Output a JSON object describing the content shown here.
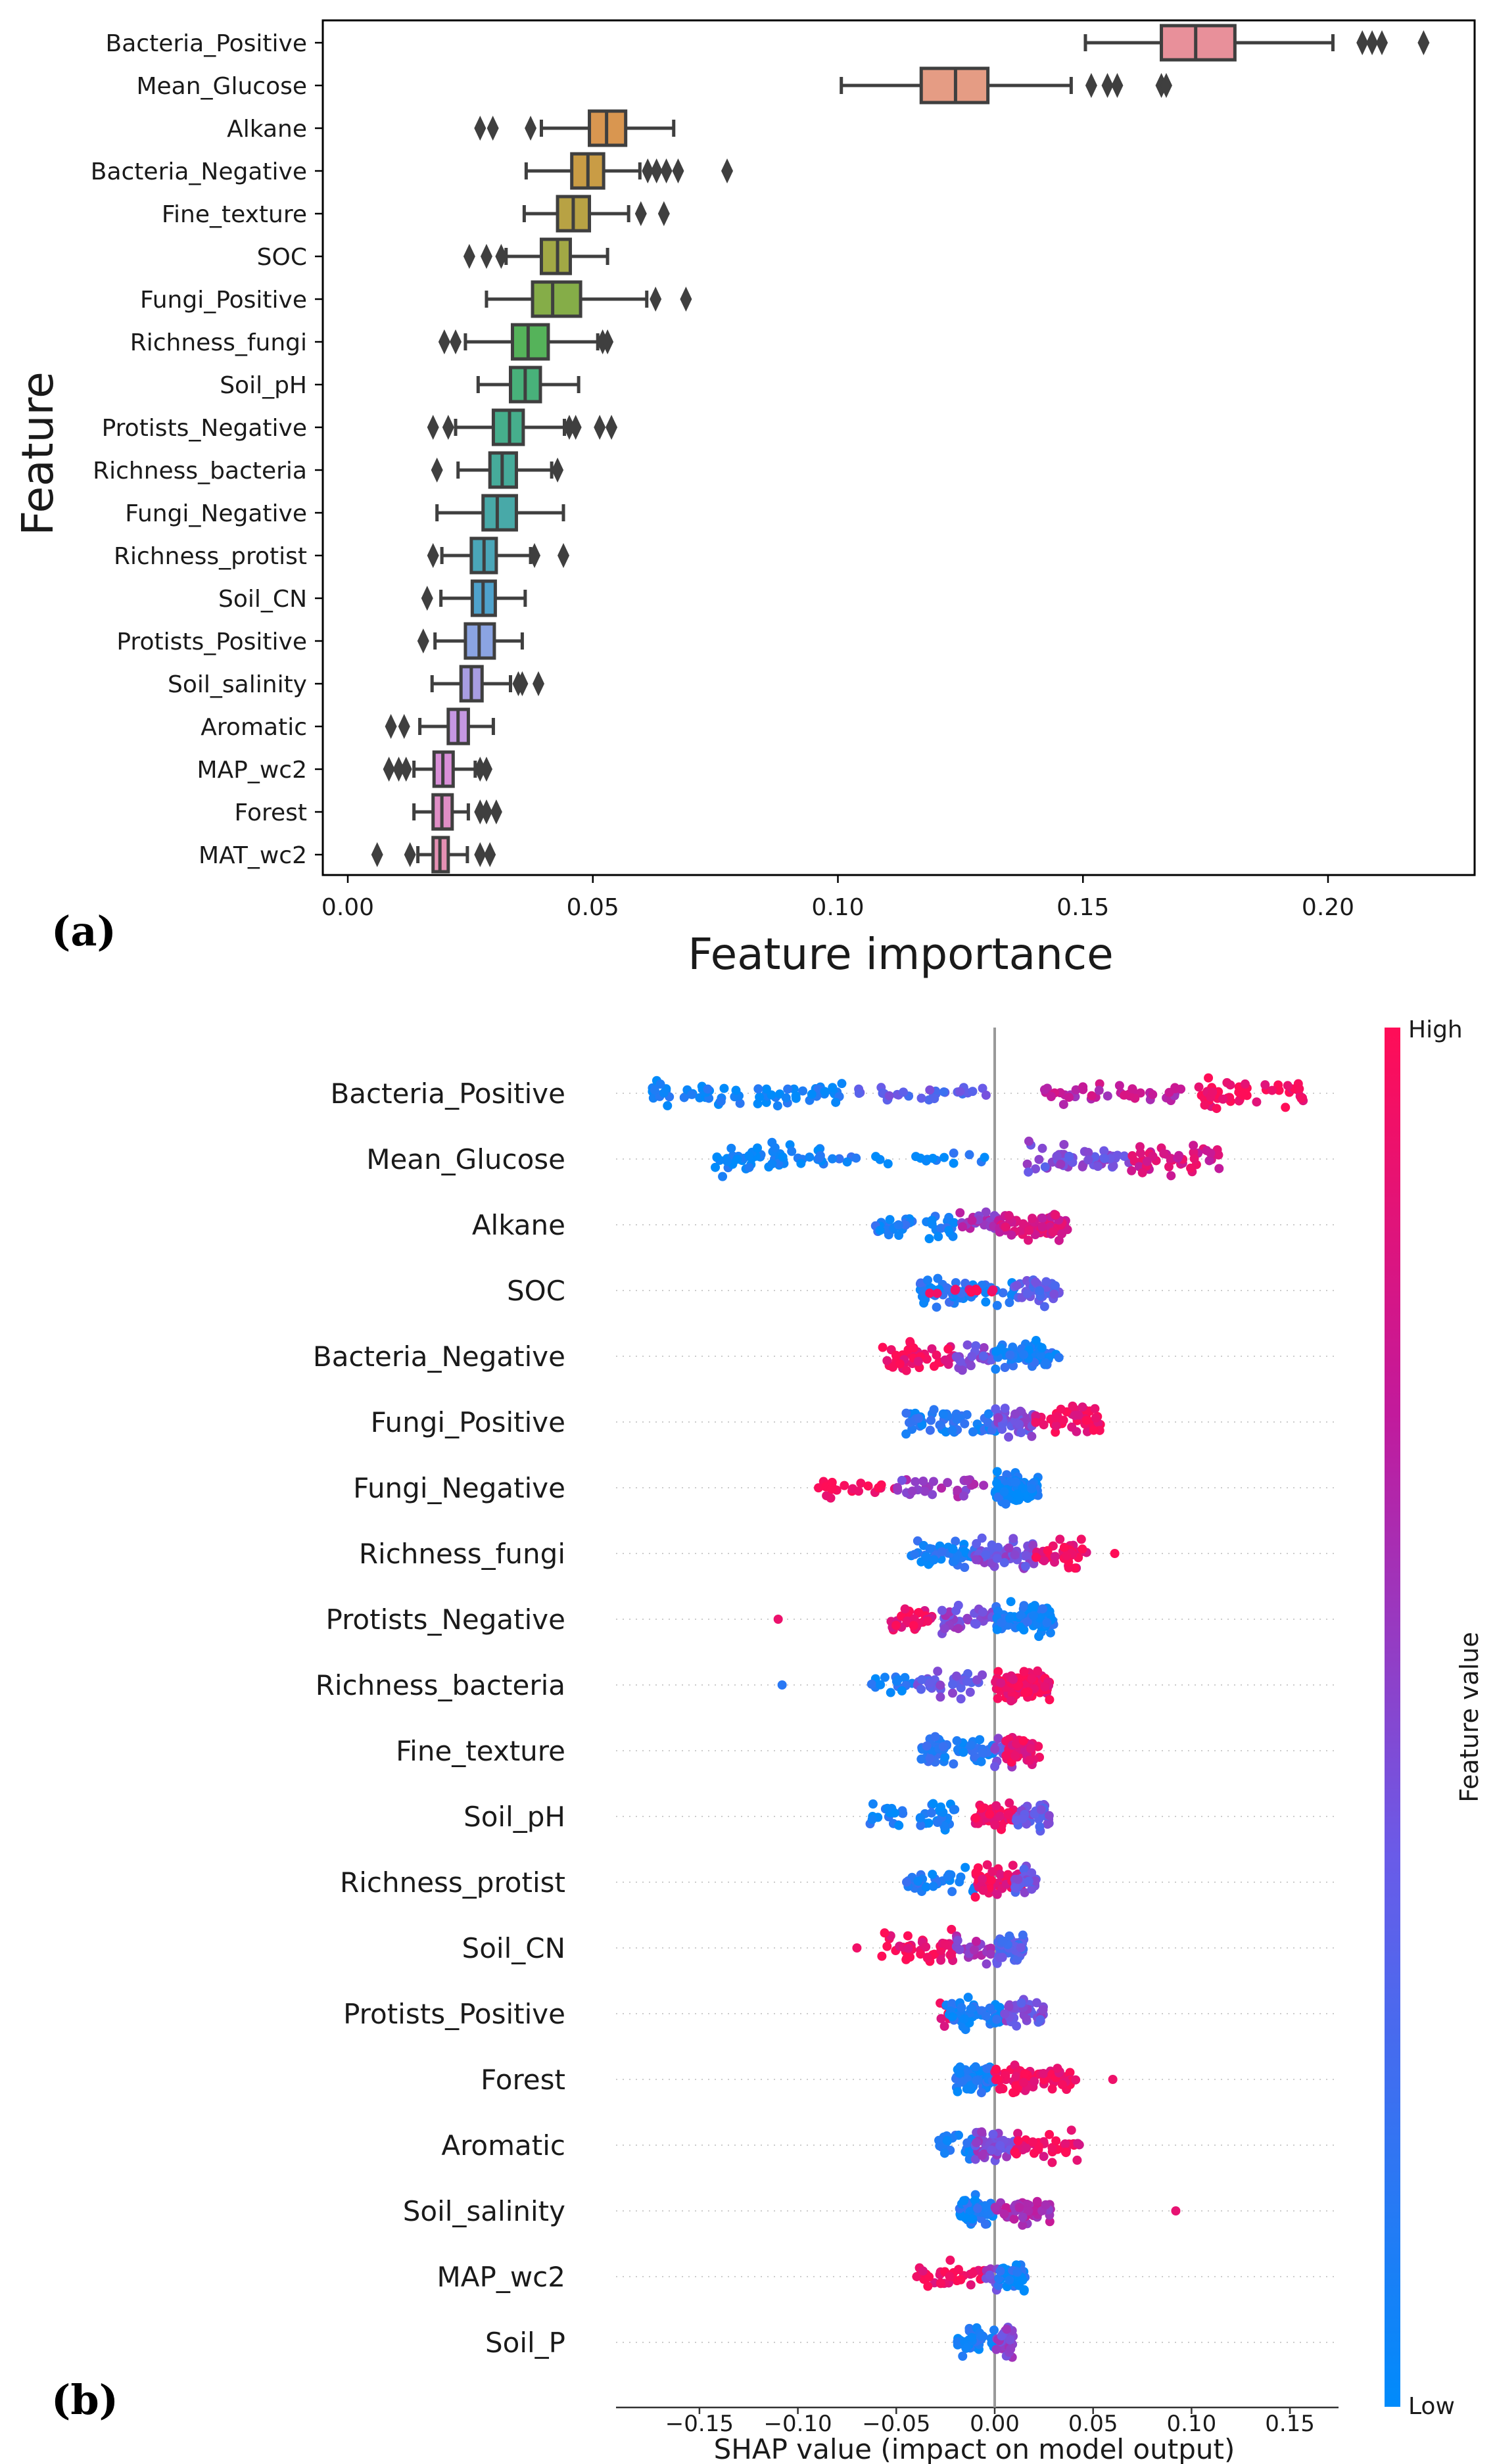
{
  "chart_data": [
    {
      "type": "box",
      "panel_label": "(a)",
      "xlabel": "Feature importance",
      "ylabel": "Feature",
      "xlim": [
        -0.0075,
        0.232
      ],
      "xticks": [
        0,
        0.05,
        0.1,
        0.15,
        0.2
      ],
      "xtick_labels": [
        "0.00",
        "0.05",
        "0.10",
        "0.15",
        "0.20"
      ],
      "grid": false,
      "series": [
        {
          "name": "Bacteria_Positive",
          "color": "#e8909a",
          "whislo": 0.1505,
          "q1": 0.166,
          "med": 0.173,
          "q3": 0.181,
          "whishi": 0.201,
          "fliers": [
            0.207,
            0.209,
            0.211,
            0.2195
          ]
        },
        {
          "name": "Mean_Glucose",
          "color": "#e59c84",
          "whislo": 0.1007,
          "q1": 0.117,
          "med": 0.124,
          "q3": 0.1306,
          "whishi": 0.1476,
          "fliers": [
            0.1517,
            0.155,
            0.157,
            0.166,
            0.167
          ]
        },
        {
          "name": "Alkane",
          "color": "#d99650",
          "whislo": 0.0395,
          "q1": 0.0493,
          "med": 0.0528,
          "q3": 0.0567,
          "whishi": 0.0665,
          "fliers": [
            0.027,
            0.0296,
            0.0373
          ]
        },
        {
          "name": "Bacteria_Negative",
          "color": "#c99c45",
          "whislo": 0.0364,
          "q1": 0.0457,
          "med": 0.049,
          "q3": 0.0522,
          "whishi": 0.0596,
          "fliers": [
            0.0612,
            0.063,
            0.065,
            0.0674,
            0.0774
          ]
        },
        {
          "name": "Fine_texture",
          "color": "#b8a244",
          "whislo": 0.036,
          "q1": 0.0428,
          "med": 0.046,
          "q3": 0.0493,
          "whishi": 0.0573,
          "fliers": [
            0.0598,
            0.0645
          ]
        },
        {
          "name": "SOC",
          "color": "#a2a845",
          "whislo": 0.0323,
          "q1": 0.0395,
          "med": 0.0428,
          "q3": 0.0454,
          "whishi": 0.053,
          "fliers": [
            0.0248,
            0.0283,
            0.0313
          ]
        },
        {
          "name": "Fungi_Positive",
          "color": "#85ad48",
          "whislo": 0.0283,
          "q1": 0.0377,
          "med": 0.0418,
          "q3": 0.0475,
          "whishi": 0.061,
          "fliers": [
            0.0628,
            0.069
          ]
        },
        {
          "name": "Richness_fungi",
          "color": "#55b35a",
          "whislo": 0.024,
          "q1": 0.0336,
          "med": 0.0368,
          "q3": 0.0409,
          "whishi": 0.051,
          "fliers": [
            0.0197,
            0.022,
            0.052,
            0.053
          ]
        },
        {
          "name": "Soil_pH",
          "color": "#48b17a",
          "whislo": 0.0266,
          "q1": 0.0332,
          "med": 0.0362,
          "q3": 0.0393,
          "whishi": 0.0471,
          "fliers": []
        },
        {
          "name": "Protists_Negative",
          "color": "#46ae8c",
          "whislo": 0.022,
          "q1": 0.0297,
          "med": 0.033,
          "q3": 0.0358,
          "whishi": 0.0442,
          "fliers": [
            0.0174,
            0.0205,
            0.0452,
            0.0465,
            0.0514,
            0.0538
          ]
        },
        {
          "name": "Richness_bacteria",
          "color": "#46ab9a",
          "whislo": 0.0225,
          "q1": 0.029,
          "med": 0.0315,
          "q3": 0.0344,
          "whishi": 0.0416,
          "fliers": [
            0.0182,
            0.0428
          ]
        },
        {
          "name": "Fungi_Negative",
          "color": "#48a9a8",
          "whislo": 0.0182,
          "q1": 0.0276,
          "med": 0.0305,
          "q3": 0.0344,
          "whishi": 0.044,
          "fliers": []
        },
        {
          "name": "Richness_protist",
          "color": "#4aa6b8",
          "whislo": 0.0192,
          "q1": 0.0252,
          "med": 0.0278,
          "q3": 0.0303,
          "whishi": 0.0373,
          "fliers": [
            0.0174,
            0.0381,
            0.044
          ]
        },
        {
          "name": "Soil_CN",
          "color": "#4fa2cc",
          "whislo": 0.019,
          "q1": 0.0254,
          "med": 0.0276,
          "q3": 0.0301,
          "whishi": 0.0362,
          "fliers": [
            0.0162
          ]
        },
        {
          "name": "Protists_Positive",
          "color": "#8ba4e2",
          "whislo": 0.0178,
          "q1": 0.024,
          "med": 0.0268,
          "q3": 0.0299,
          "whishi": 0.0356,
          "fliers": [
            0.0154
          ]
        },
        {
          "name": "Soil_salinity",
          "color": "#a89de2",
          "whislo": 0.0172,
          "q1": 0.0231,
          "med": 0.0252,
          "q3": 0.0274,
          "whishi": 0.0332,
          "fliers": [
            0.0348,
            0.0356,
            0.0389
          ]
        },
        {
          "name": "Aromatic",
          "color": "#c597e2",
          "whislo": 0.0147,
          "q1": 0.0205,
          "med": 0.0225,
          "q3": 0.0246,
          "whishi": 0.0297,
          "fliers": [
            0.0088,
            0.0115
          ]
        },
        {
          "name": "MAP_wc2",
          "color": "#d98fd8",
          "whislo": 0.0135,
          "q1": 0.0176,
          "med": 0.0194,
          "q3": 0.0215,
          "whishi": 0.026,
          "fliers": [
            0.0084,
            0.0104,
            0.0119,
            0.027,
            0.0283
          ]
        },
        {
          "name": "Forest",
          "color": "#e08ec6",
          "whislo": 0.0135,
          "q1": 0.0174,
          "med": 0.0192,
          "q3": 0.0213,
          "whishi": 0.0246,
          "fliers": [
            0.027,
            0.0283,
            0.0303
          ]
        },
        {
          "name": "MAT_wc2",
          "color": "#e590b3",
          "whislo": 0.0143,
          "q1": 0.0174,
          "med": 0.0188,
          "q3": 0.0205,
          "whishi": 0.0244,
          "fliers": [
            0.006,
            0.0127,
            0.027,
            0.029
          ]
        }
      ]
    },
    {
      "type": "scatter",
      "subtype": "beeswarm",
      "panel_label": "(b)",
      "xlabel": "SHAP value (impact on model output)",
      "xlim": [
        -0.19,
        0.177
      ],
      "xticks": [
        -0.15,
        -0.1,
        -0.05,
        0,
        0.05,
        0.1,
        0.15
      ],
      "xtick_labels": [
        "−0.15",
        "−0.10",
        "−0.05",
        "0.00",
        "0.05",
        "0.10",
        "0.15"
      ],
      "colorbar": {
        "label": "Feature value",
        "high": "High",
        "low": "Low",
        "colors": [
          "#008bfb",
          "#6a5be8",
          "#c21a9c",
          "#ff0d57"
        ]
      },
      "series": [
        {
          "name": "Bacteria_Positive",
          "groups": [
            [
              -0.174,
              -0.077,
              70,
              0.05
            ],
            [
              -0.077,
              -0.004,
              30,
              0.35
            ],
            [
              0.025,
              0.098,
              45,
              0.7
            ],
            [
              0.103,
              0.157,
              55,
              0.95
            ]
          ]
        },
        {
          "name": "Mean_Glucose",
          "groups": [
            [
              -0.143,
              -0.085,
              55,
              0.03
            ],
            [
              -0.085,
              -0.004,
              20,
              0.1
            ],
            [
              0.016,
              0.069,
              55,
              0.45
            ],
            [
              0.069,
              0.115,
              45,
              0.82
            ]
          ]
        },
        {
          "name": "Alkane",
          "groups": [
            [
              -0.062,
              -0.018,
              40,
              0.1
            ],
            [
              -0.018,
              0.002,
              25,
              0.6
            ],
            [
              0.002,
              0.037,
              70,
              0.8
            ]
          ]
        },
        {
          "name": "SOC",
          "groups": [
            [
              -0.038,
              0.01,
              60,
              0.12
            ],
            [
              -0.036,
              0.0,
              10,
              0.95
            ],
            [
              0.01,
              0.033,
              40,
              0.35
            ]
          ]
        },
        {
          "name": "Bacteria_Negative",
          "groups": [
            [
              -0.06,
              -0.02,
              40,
              0.95
            ],
            [
              -0.02,
              0.0,
              25,
              0.45
            ],
            [
              0.0,
              0.033,
              70,
              0.1
            ]
          ]
        },
        {
          "name": "Fungi_Positive",
          "groups": [
            [
              -0.046,
              0.005,
              60,
              0.12
            ],
            [
              0.0,
              0.02,
              40,
              0.45
            ],
            [
              0.02,
              0.054,
              45,
              0.92
            ]
          ]
        },
        {
          "name": "Fungi_Negative",
          "groups": [
            [
              -0.09,
              -0.05,
              20,
              0.95
            ],
            [
              -0.05,
              -0.005,
              30,
              0.55
            ],
            [
              0.0,
              0.022,
              110,
              0.05
            ]
          ]
        },
        {
          "name": "Richness_fungi",
          "groups": [
            [
              -0.044,
              -0.01,
              50,
              0.12
            ],
            [
              -0.01,
              0.02,
              60,
              0.45
            ],
            [
              0.02,
              0.047,
              45,
              0.92
            ],
            [
              0.061,
              0.061,
              1,
              1
            ]
          ]
        },
        {
          "name": "Protists_Negative",
          "groups": [
            [
              -0.11,
              -0.11,
              1,
              1
            ],
            [
              -0.053,
              -0.03,
              30,
              0.92
            ],
            [
              -0.03,
              0.0,
              40,
              0.5
            ],
            [
              0.0,
              0.03,
              90,
              0.08
            ]
          ]
        },
        {
          "name": "Richness_bacteria",
          "groups": [
            [
              -0.108,
              -0.108,
              1,
              0.05
            ],
            [
              -0.065,
              -0.04,
              15,
              0.1
            ],
            [
              -0.04,
              -0.005,
              35,
              0.4
            ],
            [
              0.0,
              0.028,
              100,
              0.93
            ]
          ]
        },
        {
          "name": "Fine_texture",
          "groups": [
            [
              -0.038,
              0.0,
              60,
              0.12
            ],
            [
              0.0,
              0.01,
              25,
              0.45
            ],
            [
              0.005,
              0.023,
              45,
              0.9
            ]
          ]
        },
        {
          "name": "Soil_pH",
          "groups": [
            [
              -0.065,
              -0.02,
              40,
              0.08
            ],
            [
              -0.01,
              0.01,
              50,
              0.95
            ],
            [
              0.01,
              0.028,
              40,
              0.4
            ]
          ]
        },
        {
          "name": "Richness_protist",
          "groups": [
            [
              -0.045,
              -0.01,
              30,
              0.12
            ],
            [
              -0.01,
              0.015,
              50,
              0.92
            ],
            [
              0.01,
              0.021,
              30,
              0.4
            ]
          ]
        },
        {
          "name": "Soil_CN",
          "groups": [
            [
              -0.07,
              -0.07,
              1,
              1
            ],
            [
              -0.058,
              -0.02,
              45,
              0.95
            ],
            [
              -0.02,
              0.0,
              25,
              0.6
            ],
            [
              0.0,
              0.015,
              60,
              0.3
            ]
          ]
        },
        {
          "name": "Protists_Positive",
          "groups": [
            [
              -0.028,
              -0.02,
              8,
              0.95
            ],
            [
              -0.025,
              0.005,
              55,
              0.1
            ],
            [
              0.005,
              0.026,
              45,
              0.45
            ]
          ]
        },
        {
          "name": "Forest",
          "groups": [
            [
              -0.02,
              0.0,
              55,
              0.08
            ],
            [
              0.0,
              0.044,
              70,
              0.95
            ],
            [
              0.06,
              0.06,
              1,
              1
            ]
          ]
        },
        {
          "name": "Aromatic",
          "groups": [
            [
              -0.03,
              -0.01,
              25,
              0.12
            ],
            [
              -0.01,
              0.01,
              60,
              0.5
            ],
            [
              0.01,
              0.043,
              40,
              0.93
            ]
          ]
        },
        {
          "name": "Soil_salinity",
          "groups": [
            [
              -0.018,
              0.0,
              55,
              0.1
            ],
            [
              0.0,
              0.03,
              50,
              0.65
            ],
            [
              0.092,
              0.092,
              1,
              1
            ]
          ]
        },
        {
          "name": "MAP_wc2",
          "groups": [
            [
              -0.04,
              -0.005,
              35,
              0.95
            ],
            [
              -0.005,
              0.002,
              10,
              0.5
            ],
            [
              0.0,
              0.016,
              40,
              0.08
            ]
          ]
        },
        {
          "name": "Soil_P",
          "groups": [
            [
              -0.019,
              0.0,
              40,
              0.08
            ],
            [
              0.0,
              0.01,
              35,
              0.5
            ]
          ]
        }
      ]
    }
  ]
}
